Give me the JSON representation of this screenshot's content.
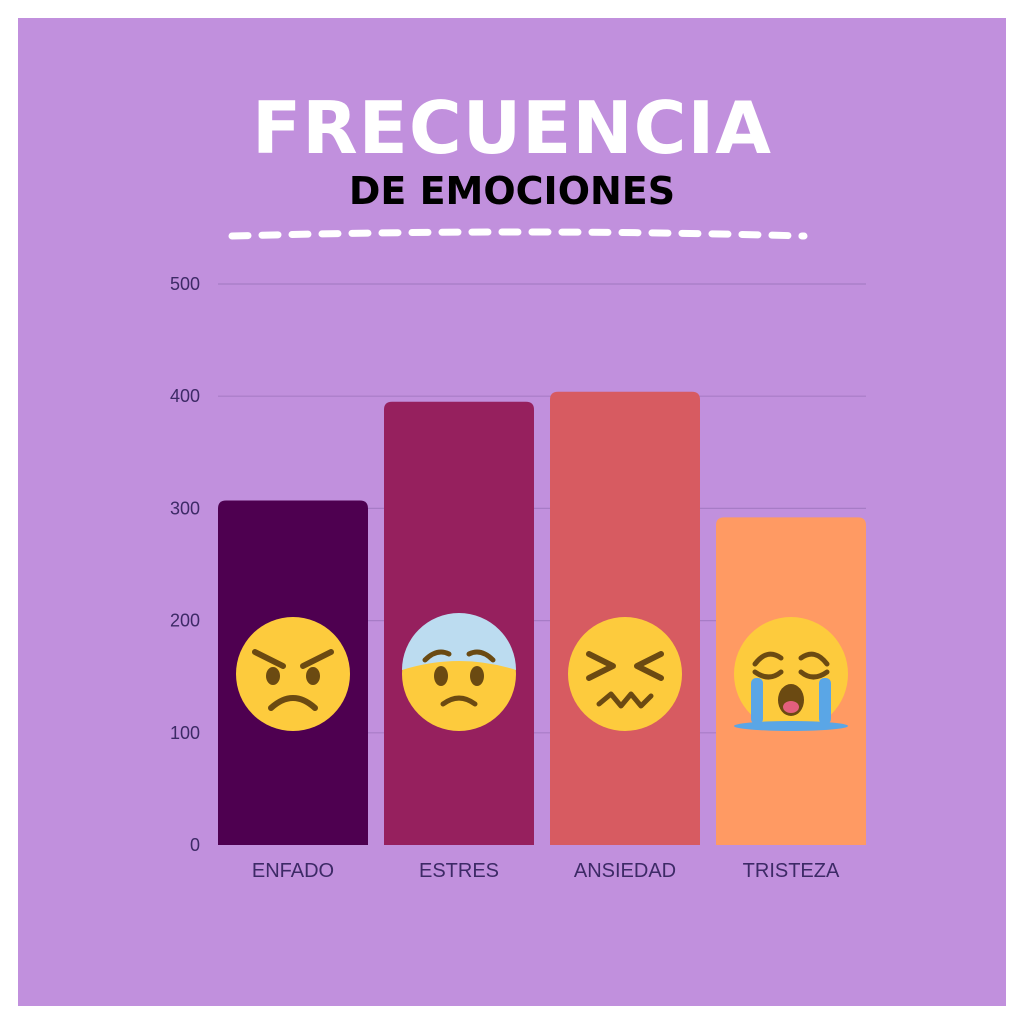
{
  "colors": {
    "background": "#c190dd",
    "title": "#ffffff",
    "subtitle": "#000000",
    "axis_text": "#3d2a66",
    "grid": "#a77cc6",
    "emoji_yellow": "#fdcb3d",
    "emoji_feature": "#6b4a12"
  },
  "header": {
    "title": "FRECUENCIA",
    "subtitle": "DE EMOCIONES"
  },
  "chart_data": {
    "type": "bar",
    "title": "FRECUENCIA DE EMOCIONES",
    "xlabel": "",
    "ylabel": "",
    "ylim": [
      0,
      500
    ],
    "yticks": [
      0,
      100,
      200,
      300,
      400,
      500
    ],
    "grid": true,
    "categories": [
      "ENFADO",
      "ESTRES",
      "ANSIEDAD",
      "TRISTEZA"
    ],
    "values": [
      307,
      395,
      404,
      292
    ],
    "bar_colors": [
      "#4e0050",
      "#96205e",
      "#d75b61",
      "#ff9a63"
    ],
    "icons": [
      "angry-face-icon",
      "anxious-face-icon",
      "confounded-face-icon",
      "crying-face-icon"
    ]
  }
}
